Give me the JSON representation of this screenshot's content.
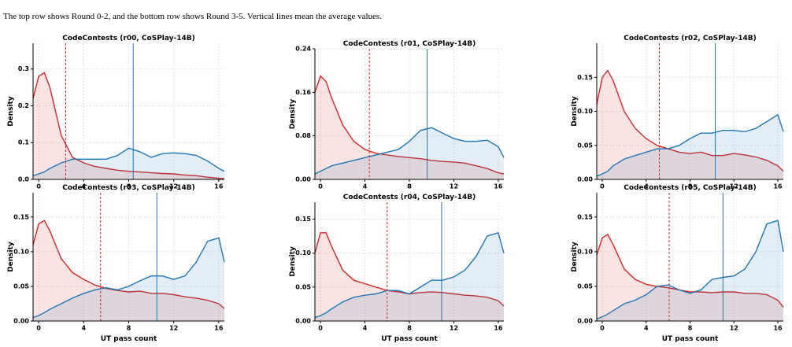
{
  "caption": "The top row shows Round 0-2, and the bottom row shows Round 3-5. Vertical lines mean the average values.",
  "chart_data": [
    {
      "type": "line",
      "title": "CodeContests (r00, CoSPlay-14B)",
      "ylabel": "Density",
      "grid": true,
      "x": [
        -0.5,
        0,
        0.5,
        1,
        2,
        3,
        4,
        5,
        6,
        7,
        8,
        9,
        10,
        11,
        12,
        13,
        14,
        15,
        16,
        16.5
      ],
      "xlim": [
        -0.5,
        16.5
      ],
      "xticks": [
        0,
        4,
        8,
        12,
        16
      ],
      "ylim": [
        0,
        0.37
      ],
      "yticks": [
        {
          "value": 0,
          "label": "0.0"
        },
        0.1,
        0.2,
        0.3
      ],
      "series": [
        {
          "color": "#d62728",
          "values": [
            0.22,
            0.28,
            0.29,
            0.25,
            0.12,
            0.06,
            0.045,
            0.035,
            0.03,
            0.025,
            0.022,
            0.02,
            0.018,
            0.016,
            0.015,
            0.012,
            0.01,
            0.006,
            0.003,
            0.002
          ]
        },
        {
          "color": "#1f77b4",
          "values": [
            0.01,
            0.015,
            0.02,
            0.03,
            0.045,
            0.055,
            0.055,
            0.055,
            0.055,
            0.065,
            0.085,
            0.075,
            0.06,
            0.07,
            0.072,
            0.07,
            0.065,
            0.05,
            0.03,
            0.022
          ]
        }
      ],
      "vlines": [
        {
          "x": 2.4,
          "color": "#d62728",
          "dashed": true
        },
        {
          "x": 8.4,
          "color": "#1f77b4",
          "dashed": false
        }
      ]
    },
    {
      "type": "line",
      "title": "CodeContests (r01, CoSPlay-14B)",
      "ylabel": "Density",
      "grid": true,
      "x": [
        -0.5,
        0,
        0.5,
        1,
        2,
        3,
        4,
        5,
        6,
        7,
        8,
        9,
        10,
        11,
        12,
        13,
        14,
        15,
        16,
        16.5
      ],
      "xlim": [
        -0.5,
        16.5
      ],
      "xticks": [
        0,
        4,
        8,
        12,
        16
      ],
      "ylim": [
        0,
        0.24
      ],
      "yticks": [
        {
          "value": 0,
          "label": "0.00"
        },
        0.08,
        0.16,
        0.24
      ],
      "series": [
        {
          "color": "#d62728",
          "values": [
            0.16,
            0.19,
            0.18,
            0.15,
            0.1,
            0.07,
            0.055,
            0.048,
            0.045,
            0.042,
            0.04,
            0.038,
            0.035,
            0.033,
            0.032,
            0.03,
            0.025,
            0.02,
            0.012,
            0.01
          ]
        },
        {
          "color": "#1f77b4",
          "values": [
            0.01,
            0.015,
            0.02,
            0.025,
            0.03,
            0.035,
            0.04,
            0.045,
            0.05,
            0.055,
            0.07,
            0.09,
            0.095,
            0.085,
            0.075,
            0.07,
            0.07,
            0.072,
            0.06,
            0.04
          ]
        }
      ],
      "vlines": [
        {
          "x": 4.4,
          "color": "#d62728",
          "dashed": true
        },
        {
          "x": 9.6,
          "color": "#1f77b4",
          "dashed": false
        }
      ]
    },
    {
      "type": "line",
      "title": "CodeContests (r02, CoSPlay-14B)",
      "ylabel": "Density",
      "grid": true,
      "x": [
        -0.5,
        0,
        0.5,
        1,
        2,
        3,
        4,
        5,
        6,
        7,
        8,
        9,
        10,
        11,
        12,
        13,
        14,
        15,
        16,
        16.5
      ],
      "xlim": [
        -0.5,
        16.5
      ],
      "xticks": [
        0,
        4,
        8,
        12,
        16
      ],
      "ylim": [
        0,
        0.2
      ],
      "yticks": [
        {
          "value": 0,
          "label": "0.00"
        },
        0.05,
        {
          "value": 0.1,
          "label": "0.10"
        },
        0.15
      ],
      "series": [
        {
          "color": "#d62728",
          "values": [
            0.11,
            0.15,
            0.16,
            0.145,
            0.1,
            0.075,
            0.06,
            0.05,
            0.045,
            0.04,
            0.038,
            0.04,
            0.035,
            0.035,
            0.038,
            0.036,
            0.033,
            0.028,
            0.02,
            0.012
          ]
        },
        {
          "color": "#1f77b4",
          "values": [
            0.005,
            0.008,
            0.012,
            0.02,
            0.03,
            0.035,
            0.04,
            0.045,
            0.045,
            0.05,
            0.06,
            0.068,
            0.068,
            0.072,
            0.072,
            0.07,
            0.075,
            0.085,
            0.095,
            0.07
          ]
        }
      ],
      "vlines": [
        {
          "x": 5.2,
          "color": "#d62728",
          "dashed": true
        },
        {
          "x": 10.3,
          "color": "#1f77b4",
          "dashed": false
        }
      ]
    },
    {
      "type": "line",
      "title": "CodeContests (r03, CoSPlay-14B)",
      "xlabel": "UT pass count",
      "ylabel": "Density",
      "grid": true,
      "x": [
        -0.5,
        0,
        0.5,
        1,
        2,
        3,
        4,
        5,
        6,
        7,
        8,
        9,
        10,
        11,
        12,
        13,
        14,
        15,
        16,
        16.5
      ],
      "xlim": [
        -0.5,
        16.5
      ],
      "xticks": [
        0,
        4,
        8,
        12,
        16
      ],
      "ylim": [
        0,
        0.185
      ],
      "yticks": [
        {
          "value": 0,
          "label": "0.00"
        },
        0.05,
        {
          "value": 0.1,
          "label": "0.10"
        },
        0.15
      ],
      "series": [
        {
          "color": "#d62728",
          "values": [
            0.11,
            0.14,
            0.145,
            0.13,
            0.09,
            0.07,
            0.06,
            0.052,
            0.047,
            0.044,
            0.042,
            0.043,
            0.04,
            0.04,
            0.038,
            0.035,
            0.033,
            0.03,
            0.025,
            0.018
          ]
        },
        {
          "color": "#1f77b4",
          "values": [
            0.005,
            0.008,
            0.012,
            0.017,
            0.025,
            0.033,
            0.04,
            0.045,
            0.048,
            0.045,
            0.05,
            0.058,
            0.065,
            0.065,
            0.06,
            0.065,
            0.085,
            0.115,
            0.12,
            0.085
          ]
        }
      ],
      "vlines": [
        {
          "x": 5.5,
          "color": "#d62728",
          "dashed": true
        },
        {
          "x": 10.5,
          "color": "#1f77b4",
          "dashed": false
        }
      ]
    },
    {
      "type": "line",
      "title": "CodeContests (r04, CoSPlay-14B)",
      "xlabel": "UT pass count",
      "ylabel": "Density",
      "grid": true,
      "x": [
        -0.5,
        0,
        0.5,
        1,
        2,
        3,
        4,
        5,
        6,
        7,
        8,
        9,
        10,
        11,
        12,
        13,
        14,
        15,
        16,
        16.5
      ],
      "xlim": [
        -0.5,
        16.5
      ],
      "xticks": [
        0,
        4,
        8,
        12,
        16
      ],
      "ylim": [
        0,
        0.175
      ],
      "yticks": [
        {
          "value": 0,
          "label": "0.00"
        },
        0.05,
        {
          "value": 0.1,
          "label": "0.10"
        },
        0.15
      ],
      "series": [
        {
          "color": "#d62728",
          "values": [
            0.1,
            0.13,
            0.13,
            0.11,
            0.075,
            0.06,
            0.055,
            0.05,
            0.045,
            0.043,
            0.04,
            0.042,
            0.043,
            0.042,
            0.04,
            0.038,
            0.037,
            0.035,
            0.03,
            0.022
          ]
        },
        {
          "color": "#1f77b4",
          "values": [
            0.005,
            0.008,
            0.012,
            0.018,
            0.028,
            0.035,
            0.038,
            0.04,
            0.045,
            0.045,
            0.04,
            0.05,
            0.06,
            0.06,
            0.065,
            0.075,
            0.095,
            0.125,
            0.13,
            0.1
          ]
        }
      ],
      "vlines": [
        {
          "x": 6.0,
          "color": "#d62728",
          "dashed": true
        },
        {
          "x": 10.9,
          "color": "#1f77b4",
          "dashed": false
        }
      ]
    },
    {
      "type": "line",
      "title": "CodeContests (r05, CoSPlay-14B)",
      "xlabel": "UT pass count",
      "ylabel": "Density",
      "grid": true,
      "x": [
        -0.5,
        0,
        0.5,
        1,
        2,
        3,
        4,
        5,
        6,
        7,
        8,
        9,
        10,
        11,
        12,
        13,
        14,
        15,
        16,
        16.5
      ],
      "xlim": [
        -0.5,
        16.5
      ],
      "xticks": [
        0,
        4,
        8,
        12,
        16
      ],
      "ylim": [
        0,
        0.185
      ],
      "yticks": [
        {
          "value": 0,
          "label": "0.00"
        },
        0.05,
        {
          "value": 0.1,
          "label": "0.10"
        },
        0.15
      ],
      "series": [
        {
          "color": "#d62728",
          "values": [
            0.095,
            0.12,
            0.125,
            0.11,
            0.075,
            0.06,
            0.053,
            0.05,
            0.048,
            0.045,
            0.042,
            0.042,
            0.041,
            0.042,
            0.042,
            0.04,
            0.04,
            0.038,
            0.03,
            0.02
          ]
        },
        {
          "color": "#1f77b4",
          "values": [
            0.003,
            0.006,
            0.01,
            0.015,
            0.025,
            0.03,
            0.038,
            0.05,
            0.052,
            0.045,
            0.04,
            0.045,
            0.06,
            0.063,
            0.065,
            0.075,
            0.1,
            0.14,
            0.145,
            0.1
          ]
        }
      ],
      "vlines": [
        {
          "x": 6.1,
          "color": "#d62728",
          "dashed": true
        },
        {
          "x": 11.0,
          "color": "#1f77b4",
          "dashed": false
        }
      ]
    }
  ]
}
